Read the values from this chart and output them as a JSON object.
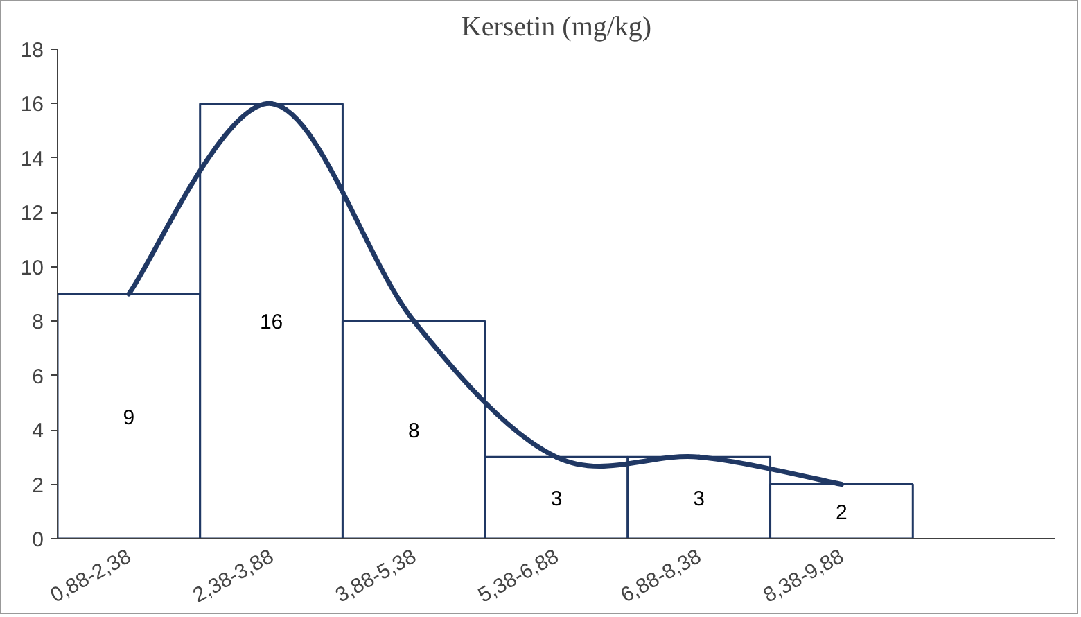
{
  "chart_data": {
    "type": "bar",
    "title": "Kersetin (mg/kg)",
    "categories": [
      "0,88-2,38",
      "2,38-3,88",
      "3,88-5,38",
      "5,38-6,88",
      "6,88-8,38",
      "8,38-9,88",
      null
    ],
    "series": [
      {
        "color": "#ffffff",
        "values": [
          9,
          16,
          8,
          3,
          3,
          2,
          null
        ],
        "value_labels": [
          "9",
          "16",
          "8",
          "3",
          "3",
          "2",
          null
        ]
      },
      {
        "type": "line",
        "color": "#203864",
        "values": [
          9,
          16,
          8,
          3,
          3,
          2,
          null
        ]
      }
    ],
    "ylim": [
      0,
      18
    ],
    "yticks": [
      0,
      2,
      4,
      6,
      8,
      10,
      12,
      14,
      16,
      18
    ],
    "grid": false
  }
}
